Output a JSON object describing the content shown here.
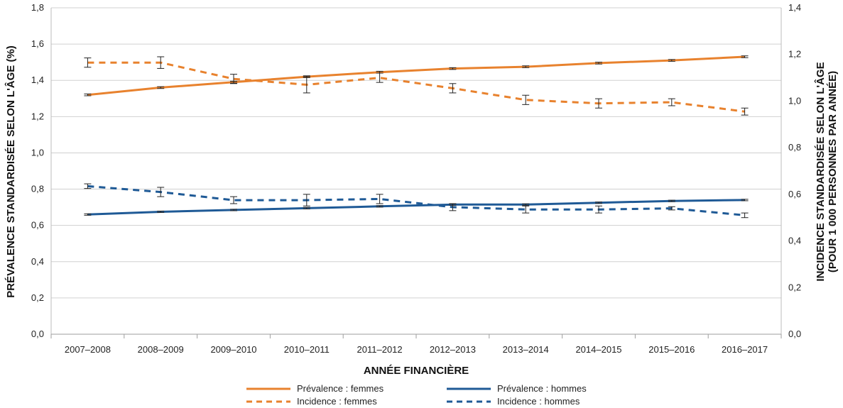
{
  "chart_data": {
    "type": "line",
    "categories": [
      "2007–2008",
      "2008–2009",
      "2009–2010",
      "2010–2011",
      "2011–2012",
      "2012–2013",
      "2013–2014",
      "2014–2015",
      "2015–2016",
      "2016–2017"
    ],
    "xlabel": "ANNÉE FINANCIÈRE",
    "ylabel_left": "PRÉVALENCE STANDARDISÉE SELON L'ÂGE (%)",
    "ylabel_right_line1": "INCIDENCE STANDARDISÉE SELON L'ÂGE",
    "ylabel_right_line2": "(POUR 1 000 PERSONNES PAR ANNÉE)",
    "ylim_left": [
      0,
      1.8
    ],
    "ylim_right": [
      0,
      1.4
    ],
    "yticks_left": [
      "0,0",
      "0,2",
      "0,4",
      "0,6",
      "0,8",
      "1,0",
      "1,2",
      "1,4",
      "1,6",
      "1,8"
    ],
    "yticks_right": [
      "0,0",
      "0,2",
      "0,4",
      "0,6",
      "0,8",
      "1,0",
      "1,2",
      "1,4"
    ],
    "grid": true,
    "legend_position": "bottom",
    "series": [
      {
        "name": "Prévalence : femmes",
        "axis": "left",
        "style": "solid",
        "color": "#E8822E",
        "values": [
          1.32,
          1.36,
          1.39,
          1.42,
          1.445,
          1.465,
          1.475,
          1.495,
          1.51,
          1.53
        ],
        "error": [
          0.005,
          0.005,
          0.005,
          0.005,
          0.005,
          0.005,
          0.005,
          0.005,
          0.005,
          0.005
        ]
      },
      {
        "name": "Incidence : femmes",
        "axis": "right",
        "style": "dashed",
        "color": "#E8822E",
        "values": [
          1.165,
          1.165,
          1.095,
          1.07,
          1.1,
          1.055,
          1.005,
          0.99,
          0.995,
          0.955
        ],
        "error": [
          0.02,
          0.025,
          0.02,
          0.035,
          0.02,
          0.02,
          0.02,
          0.02,
          0.015,
          0.015
        ]
      },
      {
        "name": "Prévalence : hommes",
        "axis": "left",
        "style": "solid",
        "color": "#1F5A96",
        "values": [
          0.66,
          0.675,
          0.685,
          0.695,
          0.705,
          0.715,
          0.715,
          0.725,
          0.735,
          0.74
        ],
        "error": [
          0.004,
          0.004,
          0.004,
          0.004,
          0.004,
          0.004,
          0.004,
          0.004,
          0.004,
          0.004
        ]
      },
      {
        "name": "Incidence : hommes",
        "axis": "right",
        "style": "dashed",
        "color": "#1F5A96",
        "values": [
          0.635,
          0.61,
          0.575,
          0.575,
          0.58,
          0.545,
          0.535,
          0.535,
          0.54,
          0.51
        ],
        "error": [
          0.01,
          0.02,
          0.015,
          0.025,
          0.02,
          0.015,
          0.015,
          0.015,
          0.007,
          0.01
        ]
      }
    ]
  }
}
